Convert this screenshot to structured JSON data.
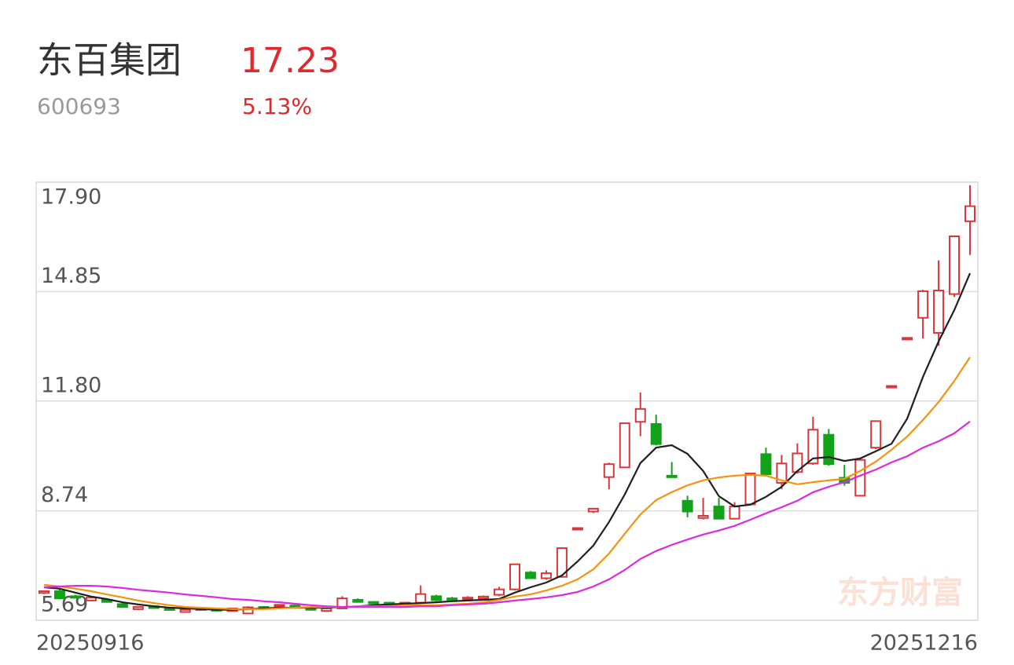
{
  "header": {
    "title": "东百集团",
    "code": "600693",
    "price": "17.23",
    "change": "5.13%"
  },
  "chart_data": {
    "type": "candlestick",
    "watermark": "东方财富",
    "categories": [
      "20250916",
      null,
      null,
      null,
      null,
      null,
      null,
      null,
      null,
      null,
      null,
      null,
      null,
      null,
      null,
      null,
      null,
      null,
      null,
      null,
      null,
      null,
      null,
      null,
      null,
      null,
      null,
      null,
      null,
      null,
      null,
      null,
      null,
      null,
      null,
      null,
      null,
      null,
      null,
      null,
      null,
      null,
      null,
      null,
      null,
      null,
      null,
      null,
      null,
      null,
      null,
      null,
      null,
      null,
      null,
      null,
      null,
      null,
      null,
      "20251216"
    ],
    "open": [
      6.45,
      6.5,
      6.36,
      6.24,
      6.26,
      6.14,
      6.0,
      6.08,
      6.02,
      5.92,
      5.98,
      6.0,
      5.95,
      5.88,
      6.06,
      6.08,
      6.1,
      6.05,
      5.95,
      6.02,
      6.26,
      6.2,
      6.18,
      6.12,
      6.18,
      6.36,
      6.3,
      6.28,
      6.3,
      6.4,
      6.55,
      7.02,
      6.86,
      6.9,
      8.24,
      8.72,
      9.68,
      9.95,
      11.22,
      11.16,
      9.72,
      9.02,
      8.54,
      8.86,
      8.52,
      8.92,
      10.32,
      9.52,
      9.82,
      10.06,
      10.86,
      9.66,
      9.16,
      10.5,
      12.18,
      13.52,
      14.12,
      13.7,
      14.78,
      16.81
    ],
    "high": [
      6.52,
      6.55,
      6.4,
      6.34,
      6.3,
      6.18,
      6.08,
      6.1,
      6.04,
      6.0,
      6.04,
      6.03,
      6.04,
      6.08,
      6.08,
      6.14,
      6.12,
      6.08,
      6.04,
      6.36,
      6.3,
      6.22,
      6.2,
      6.2,
      6.66,
      6.4,
      6.34,
      6.36,
      6.38,
      6.62,
      7.26,
      7.06,
      7.08,
      7.72,
      8.28,
      8.82,
      10.08,
      11.2,
      12.04,
      11.42,
      10.1,
      9.16,
      9.1,
      9.1,
      8.98,
      9.8,
      10.5,
      10.3,
      10.62,
      11.36,
      11.02,
      10.02,
      10.2,
      11.26,
      12.24,
      13.58,
      14.9,
      15.72,
      16.41,
      17.81
    ],
    "low": [
      6.42,
      6.28,
      6.3,
      6.22,
      6.18,
      6.04,
      5.98,
      6.02,
      5.96,
      5.9,
      5.96,
      5.94,
      5.93,
      5.86,
      6.0,
      6.06,
      6.04,
      5.96,
      5.93,
      6.0,
      6.18,
      6.14,
      6.13,
      6.1,
      6.16,
      6.22,
      6.26,
      6.26,
      6.28,
      6.36,
      6.52,
      6.84,
      6.82,
      6.88,
      8.22,
      8.68,
      9.34,
      9.93,
      10.82,
      10.56,
      9.68,
      8.56,
      8.5,
      8.5,
      8.5,
      8.9,
      9.72,
      9.34,
      9.78,
      10.02,
      10.0,
      9.44,
      9.14,
      10.46,
      12.16,
      13.5,
      13.54,
      13.34,
      14.7,
      15.87
    ],
    "close": [
      6.5,
      6.3,
      6.32,
      6.32,
      6.2,
      6.06,
      6.06,
      6.03,
      5.98,
      5.98,
      6.02,
      5.96,
      6.02,
      6.05,
      6.02,
      6.12,
      6.05,
      5.98,
      6.02,
      6.3,
      6.2,
      6.18,
      6.15,
      6.18,
      6.42,
      6.25,
      6.28,
      6.32,
      6.35,
      6.55,
      7.25,
      6.86,
      7.0,
      7.7,
      8.26,
      8.8,
      10.04,
      11.18,
      11.58,
      10.6,
      9.7,
      8.72,
      8.6,
      8.52,
      8.86,
      9.78,
      9.76,
      10.06,
      10.34,
      11.0,
      10.04,
      9.52,
      10.16,
      11.24,
      12.22,
      13.56,
      14.86,
      14.88,
      16.39,
      17.23
    ],
    "up_color": "#d9353b",
    "down_color": "#11a21a",
    "series": [
      {
        "color": "#1f1f1f",
        "values": [
          6.61,
          6.57,
          6.46,
          6.35,
          6.28,
          6.19,
          6.13,
          6.08,
          6.04,
          6.02,
          6.0,
          5.98,
          5.98,
          6.0,
          6.02,
          6.04,
          6.04,
          6.04,
          6.04,
          6.06,
          6.08,
          6.11,
          6.13,
          6.15,
          6.17,
          6.19,
          6.22,
          6.24,
          6.26,
          6.28,
          6.46,
          6.61,
          6.74,
          6.94,
          7.33,
          7.77,
          8.43,
          9.19,
          10.07,
          10.5,
          10.57,
          10.33,
          9.85,
          9.15,
          8.86,
          8.91,
          9.13,
          9.41,
          9.85,
          10.2,
          10.24,
          10.13,
          10.2,
          10.4,
          10.61,
          11.31,
          12.47,
          13.46,
          14.33,
          15.36
        ]
      },
      {
        "color": "#f5930f",
        "values": [
          6.68,
          6.63,
          6.57,
          6.5,
          6.41,
          6.33,
          6.24,
          6.17,
          6.11,
          6.06,
          6.04,
          6.02,
          6.0,
          6.0,
          6.0,
          6.02,
          6.04,
          6.06,
          6.06,
          6.06,
          6.08,
          6.08,
          6.08,
          6.11,
          6.11,
          6.11,
          6.13,
          6.15,
          6.19,
          6.26,
          6.35,
          6.41,
          6.52,
          6.65,
          6.83,
          7.11,
          7.55,
          8.1,
          8.64,
          9.04,
          9.26,
          9.45,
          9.59,
          9.67,
          9.72,
          9.74,
          9.72,
          9.59,
          9.48,
          9.54,
          9.59,
          9.63,
          9.85,
          10.11,
          10.44,
          10.81,
          11.27,
          11.77,
          12.36,
          13.02
        ]
      },
      {
        "color": "#dc2ae0",
        "values": [
          6.61,
          6.63,
          6.65,
          6.65,
          6.63,
          6.59,
          6.54,
          6.5,
          6.46,
          6.41,
          6.37,
          6.33,
          6.28,
          6.26,
          6.22,
          6.19,
          6.15,
          6.11,
          6.08,
          6.06,
          6.06,
          6.06,
          6.06,
          6.06,
          6.08,
          6.08,
          6.11,
          6.13,
          6.15,
          6.19,
          6.24,
          6.28,
          6.33,
          6.39,
          6.48,
          6.63,
          6.83,
          7.09,
          7.4,
          7.62,
          7.79,
          7.94,
          8.08,
          8.19,
          8.32,
          8.49,
          8.67,
          8.84,
          9.02,
          9.26,
          9.41,
          9.54,
          9.72,
          9.89,
          10.09,
          10.26,
          10.5,
          10.68,
          10.9,
          11.23
        ]
      }
    ],
    "ylim": [
      5.69,
      17.9
    ],
    "yticks": [
      {
        "value": 17.9,
        "label": "17.90"
      },
      14.85,
      {
        "value": 11.8,
        "label": "11.80"
      },
      8.74,
      5.69
    ],
    "grid": true
  }
}
